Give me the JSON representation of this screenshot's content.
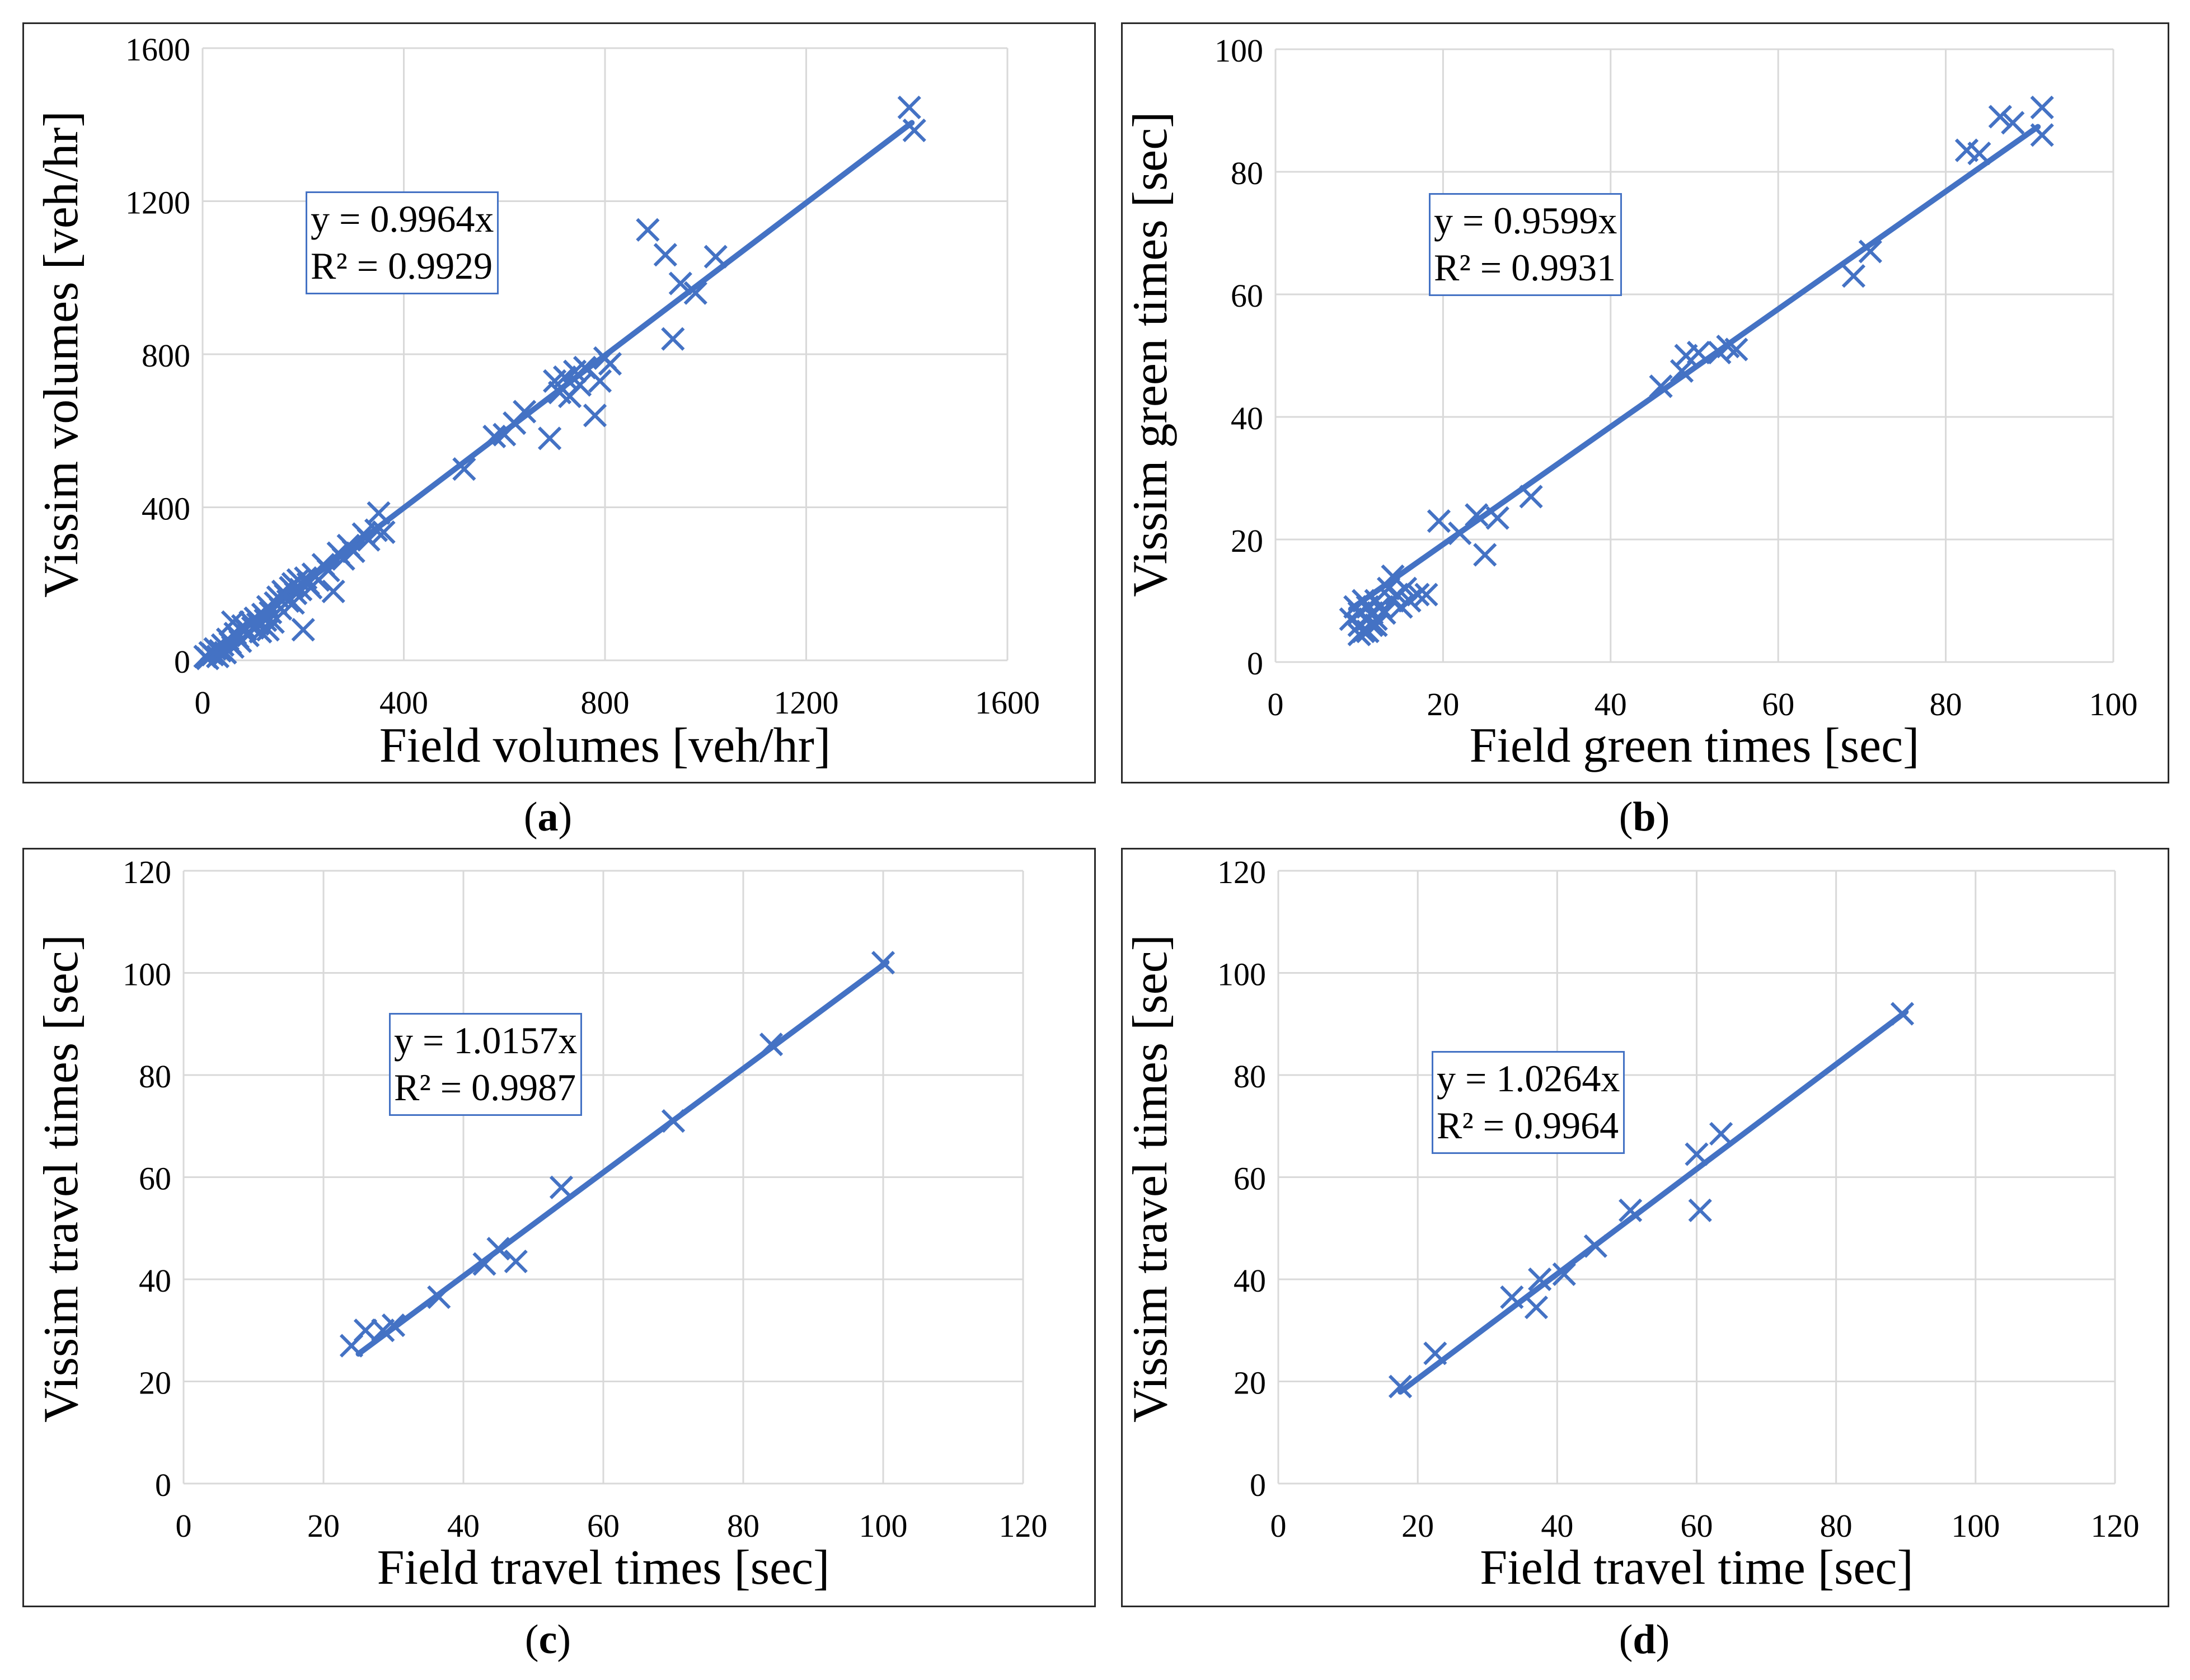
{
  "colors": {
    "series": "#4472C4",
    "grid": "#d9d9d9",
    "border": "#2a2a2a",
    "text": "#000000"
  },
  "chart_data": [
    {
      "id": "a",
      "type": "scatter",
      "caption_open": "(",
      "caption_letter": "a",
      "caption_close": ")",
      "xlabel": "Field volumes [veh/hr]",
      "ylabel": "Vissim volumes  [veh/hr]",
      "xlim": [
        0,
        1600
      ],
      "ylim": [
        0,
        1600
      ],
      "xticks": [
        0,
        400,
        800,
        1200,
        1600
      ],
      "yticks": [
        0,
        400,
        800,
        1200,
        1600
      ],
      "trendline_slope": 0.9964,
      "trendline_x": [
        0,
        1410
      ],
      "equation": "y = 0.9964x",
      "r2": "R² = 0.9929",
      "points": [
        [
          5,
          10
        ],
        [
          10,
          5
        ],
        [
          15,
          20
        ],
        [
          20,
          15
        ],
        [
          25,
          30
        ],
        [
          30,
          10
        ],
        [
          35,
          25
        ],
        [
          40,
          40
        ],
        [
          45,
          20
        ],
        [
          50,
          55
        ],
        [
          55,
          45
        ],
        [
          60,
          35
        ],
        [
          65,
          70
        ],
        [
          70,
          60
        ],
        [
          75,
          50
        ],
        [
          80,
          90
        ],
        [
          85,
          80
        ],
        [
          90,
          65
        ],
        [
          95,
          100
        ],
        [
          100,
          85
        ],
        [
          105,
          110
        ],
        [
          110,
          95
        ],
        [
          115,
          75
        ],
        [
          120,
          120
        ],
        [
          125,
          105
        ],
        [
          130,
          140
        ],
        [
          135,
          125
        ],
        [
          140,
          100
        ],
        [
          145,
          150
        ],
        [
          150,
          165
        ],
        [
          155,
          135
        ],
        [
          160,
          180
        ],
        [
          165,
          170
        ],
        [
          170,
          155
        ],
        [
          175,
          190
        ],
        [
          180,
          200
        ],
        [
          185,
          175
        ],
        [
          190,
          210
        ],
        [
          195,
          185
        ],
        [
          200,
          80
        ],
        [
          205,
          215
        ],
        [
          210,
          200
        ],
        [
          215,
          190
        ],
        [
          220,
          225
        ],
        [
          230,
          210
        ],
        [
          240,
          250
        ],
        [
          250,
          235
        ],
        [
          260,
          180
        ],
        [
          270,
          280
        ],
        [
          280,
          265
        ],
        [
          290,
          300
        ],
        [
          300,
          285
        ],
        [
          320,
          330
        ],
        [
          330,
          315
        ],
        [
          345,
          340
        ],
        [
          350,
          385
        ],
        [
          360,
          335
        ],
        [
          520,
          500
        ],
        [
          580,
          585
        ],
        [
          600,
          590
        ],
        [
          620,
          620
        ],
        [
          640,
          650
        ],
        [
          690,
          580
        ],
        [
          700,
          730
        ],
        [
          710,
          700
        ],
        [
          720,
          740
        ],
        [
          730,
          690
        ],
        [
          740,
          755
        ],
        [
          750,
          720
        ],
        [
          760,
          765
        ],
        [
          780,
          640
        ],
        [
          790,
          730
        ],
        [
          800,
          790
        ],
        [
          810,
          775
        ],
        [
          885,
          1125
        ],
        [
          920,
          1060
        ],
        [
          935,
          840
        ],
        [
          950,
          985
        ],
        [
          980,
          960
        ],
        [
          1020,
          1055
        ],
        [
          1405,
          1445
        ],
        [
          1415,
          1385
        ],
        [
          60,
          100
        ],
        [
          130,
          80
        ],
        [
          180,
          150
        ]
      ]
    },
    {
      "id": "b",
      "type": "scatter",
      "caption_open": "(",
      "caption_letter": "b",
      "caption_close": ")",
      "xlabel": "Field green times  [sec]",
      "ylabel": "Vissim green times  [sec]",
      "xlim": [
        0,
        100
      ],
      "ylim": [
        0,
        100
      ],
      "xticks": [
        0,
        20,
        40,
        60,
        80,
        100
      ],
      "yticks": [
        0,
        20,
        40,
        60,
        80,
        100
      ],
      "trendline_slope": 0.9599,
      "trendline_x": [
        9,
        91
      ],
      "equation": "y = 0.9599x",
      "r2": "R² = 0.9931",
      "points": [
        [
          9,
          7
        ],
        [
          9.5,
          9
        ],
        [
          10,
          6
        ],
        [
          10,
          8
        ],
        [
          10.5,
          5
        ],
        [
          10.5,
          10
        ],
        [
          11,
          7
        ],
        [
          11,
          9
        ],
        [
          11.5,
          6
        ],
        [
          11.5,
          8
        ],
        [
          12,
          10
        ],
        [
          12,
          7
        ],
        [
          12.5,
          9
        ],
        [
          13,
          8
        ],
        [
          13.5,
          12
        ],
        [
          14,
          10
        ],
        [
          14,
          14
        ],
        [
          14.5,
          11
        ],
        [
          15,
          9
        ],
        [
          15.5,
          12
        ],
        [
          16,
          10
        ],
        [
          17,
          11
        ],
        [
          18,
          11
        ],
        [
          19.5,
          23
        ],
        [
          22,
          21
        ],
        [
          24,
          24
        ],
        [
          25,
          17.5
        ],
        [
          26.5,
          23.5
        ],
        [
          30.5,
          27
        ],
        [
          46,
          45
        ],
        [
          48.5,
          47.5
        ],
        [
          49,
          50
        ],
        [
          50.5,
          50.5
        ],
        [
          53,
          50.5
        ],
        [
          54,
          51.5
        ],
        [
          55,
          51
        ],
        [
          69,
          63
        ],
        [
          71,
          67
        ],
        [
          82.5,
          83.5
        ],
        [
          84,
          83
        ],
        [
          86.5,
          89
        ],
        [
          88,
          88
        ],
        [
          91.5,
          90.5
        ],
        [
          91.5,
          86
        ],
        [
          10,
          4.5
        ],
        [
          11,
          5
        ],
        [
          12,
          6
        ]
      ]
    },
    {
      "id": "c",
      "type": "scatter",
      "caption_open": "(",
      "caption_letter": "c",
      "caption_close": ")",
      "xlabel": "Field travel times [sec]",
      "ylabel": "Vissim travel times [sec]",
      "xlim": [
        0,
        120
      ],
      "ylim": [
        0,
        120
      ],
      "xticks": [
        0,
        20,
        40,
        60,
        80,
        100,
        120
      ],
      "yticks": [
        0,
        20,
        40,
        60,
        80,
        100,
        120
      ],
      "trendline_slope": 1.0157,
      "trendline_x": [
        25,
        100.5
      ],
      "equation": "y = 1.0157x",
      "r2": "R² = 0.9987",
      "points": [
        [
          24,
          27
        ],
        [
          26,
          30
        ],
        [
          28.5,
          30
        ],
        [
          30,
          31
        ],
        [
          36.5,
          36.5
        ],
        [
          43,
          43
        ],
        [
          45,
          46
        ],
        [
          47.5,
          43.5
        ],
        [
          54,
          58
        ],
        [
          70,
          71
        ],
        [
          84,
          86
        ],
        [
          100,
          102
        ]
      ]
    },
    {
      "id": "d",
      "type": "scatter",
      "caption_open": "(",
      "caption_letter": "d",
      "caption_close": ")",
      "xlabel": "Field travel time [sec]",
      "ylabel": "Vissim travel times [sec]",
      "xlim": [
        0,
        120
      ],
      "ylim": [
        0,
        120
      ],
      "xticks": [
        0,
        20,
        40,
        60,
        80,
        100,
        120
      ],
      "yticks": [
        0,
        20,
        40,
        60,
        80,
        100,
        120
      ],
      "trendline_slope": 1.0264,
      "trendline_x": [
        17.5,
        90
      ],
      "equation": "y = 1.0264x",
      "r2": "R² = 0.9964",
      "points": [
        [
          17.5,
          19
        ],
        [
          22.5,
          25.5
        ],
        [
          33.5,
          36.5
        ],
        [
          37,
          34.5
        ],
        [
          37.5,
          40
        ],
        [
          41,
          41
        ],
        [
          45.5,
          46.5
        ],
        [
          50.5,
          53.5
        ],
        [
          60,
          64.5
        ],
        [
          60.5,
          53.5
        ],
        [
          63.5,
          68.5
        ],
        [
          89.5,
          92
        ]
      ]
    }
  ]
}
